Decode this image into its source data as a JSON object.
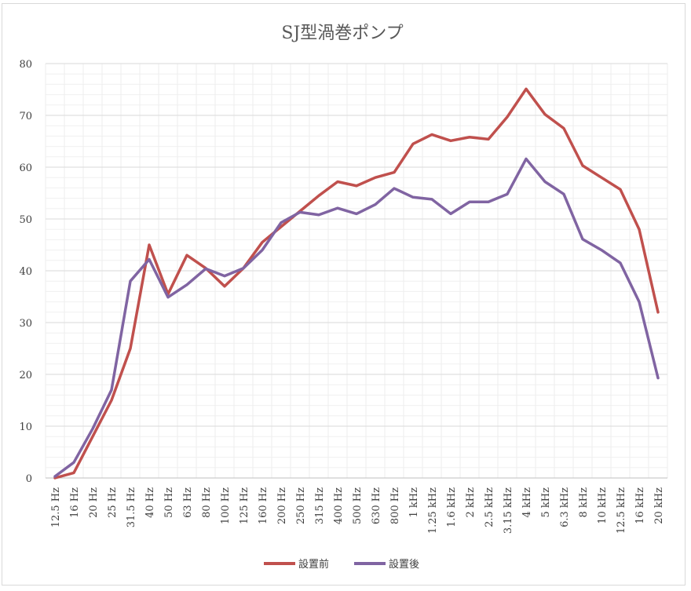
{
  "chart_data": {
    "type": "line",
    "title": "SJ型渦巻ポンプ",
    "xlabel": "",
    "ylabel": "",
    "ylim": [
      0,
      80
    ],
    "yticks": [
      0,
      10,
      20,
      30,
      40,
      50,
      60,
      70,
      80
    ],
    "grid": true,
    "minor_grid": true,
    "legend_position": "bottom",
    "categories": [
      "12.5 Hz",
      "16 Hz",
      "20 Hz",
      "25 Hz",
      "31.5 Hz",
      "40 Hz",
      "50 Hz",
      "63 Hz",
      "80 Hz",
      "100 Hz",
      "125 Hz",
      "160 Hz",
      "200 Hz",
      "250 Hz",
      "315 Hz",
      "400 Hz",
      "500 Hz",
      "630 Hz",
      "800 Hz",
      "1 kHz",
      "1.25 kHz",
      "1.6 kHz",
      "2 kHz",
      "2.5 kHz",
      "3.15 kHz",
      "4 kHz",
      "5 kHz",
      "6.3 kHz",
      "8 kHz",
      "10 kHz",
      "12.5 kHz",
      "16 kHz",
      "20 kHz"
    ],
    "series": [
      {
        "name": "設置前",
        "color": "#c0504d",
        "values": [
          0,
          1,
          8,
          15,
          25,
          45,
          35.5,
          43,
          40.5,
          37,
          40.5,
          45.5,
          48.5,
          51.5,
          54.5,
          57.2,
          56.4,
          58,
          59,
          64.5,
          66.3,
          65.1,
          65.8,
          65.4,
          69.7,
          75.1,
          70.2,
          67.5,
          60.3,
          58,
          55.7,
          48,
          32
        ]
      },
      {
        "name": "設置後",
        "color": "#8064a2",
        "values": [
          0.3,
          3,
          9.5,
          17,
          38,
          42.2,
          34.9,
          37.3,
          40.4,
          39,
          40.5,
          44,
          49.3,
          51.3,
          50.8,
          52.1,
          51,
          52.8,
          55.9,
          54.2,
          53.8,
          51,
          53.3,
          53.3,
          54.8,
          61.6,
          57.2,
          54.8,
          46.1,
          44,
          41.5,
          34,
          19.3
        ]
      }
    ]
  }
}
